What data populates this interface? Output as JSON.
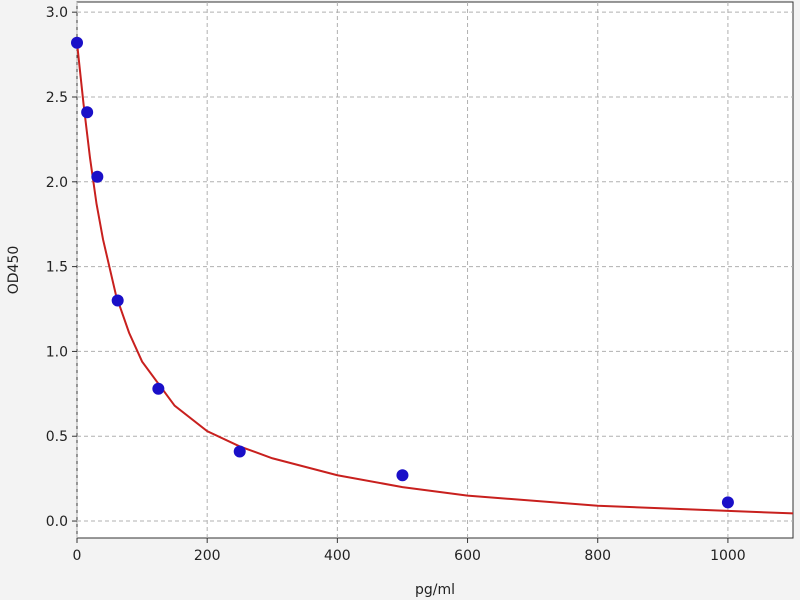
{
  "chart_data": {
    "type": "scatter",
    "xlabel": "pg/ml",
    "ylabel": "OD450",
    "xlim": [
      0,
      1100
    ],
    "ylim": [
      -0.1,
      3.06
    ],
    "xticks": [
      0,
      200,
      400,
      600,
      800,
      1000
    ],
    "yticks": [
      {
        "value": 0,
        "label": "0.0"
      },
      0.5,
      {
        "value": 1,
        "label": "1.0"
      },
      1.5,
      {
        "value": 2,
        "label": "2.0"
      },
      2.5,
      {
        "value": 3,
        "label": "3.0"
      }
    ],
    "grid": true,
    "series": [
      {
        "type": "line",
        "color": "#c8201e",
        "x": [
          0,
          10,
          20,
          30,
          40,
          60,
          80,
          100,
          150,
          200,
          250,
          300,
          400,
          500,
          600,
          800,
          1000,
          1100
        ],
        "values": [
          2.82,
          2.46,
          2.14,
          1.87,
          1.66,
          1.33,
          1.11,
          0.94,
          0.68,
          0.53,
          0.44,
          0.37,
          0.27,
          0.2,
          0.15,
          0.09,
          0.06,
          0.045
        ]
      },
      {
        "type": "scatter",
        "color": "#1a0fc8",
        "x": [
          0,
          15.6,
          31.25,
          62.5,
          125,
          250,
          500,
          1000
        ],
        "values": [
          2.82,
          2.41,
          2.03,
          1.3,
          0.78,
          0.41,
          0.27,
          0.11
        ]
      }
    ]
  }
}
